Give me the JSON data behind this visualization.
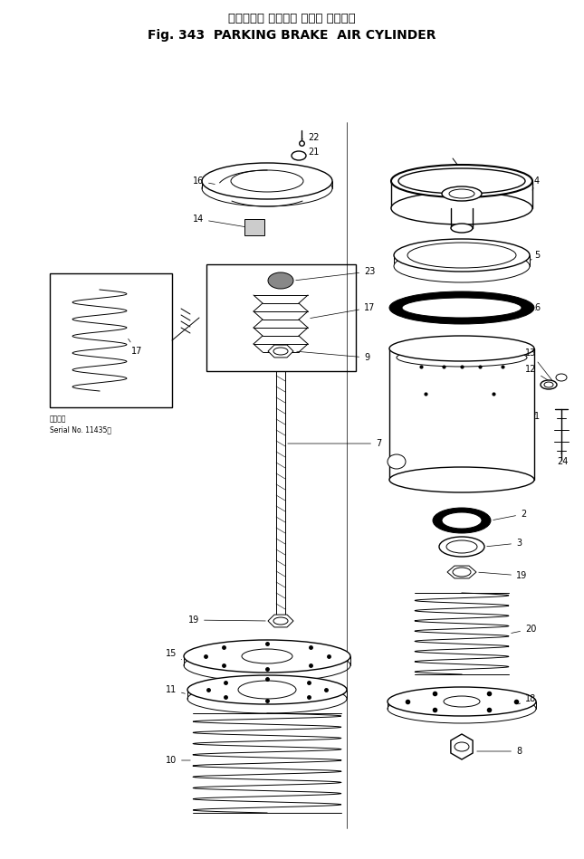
{
  "title_japanese": "パーキング ブレーキ エアー シリンダ",
  "title_english": "Fig. 343  PARKING BRAKE  AIR CYLINDER",
  "background_color": "#ffffff",
  "line_color": "#000000",
  "serial_note_jp": "適用号等",
  "serial_note_en": "Serial No. 11435～",
  "fig_width": 6.45,
  "fig_height": 9.49,
  "dpi": 100
}
